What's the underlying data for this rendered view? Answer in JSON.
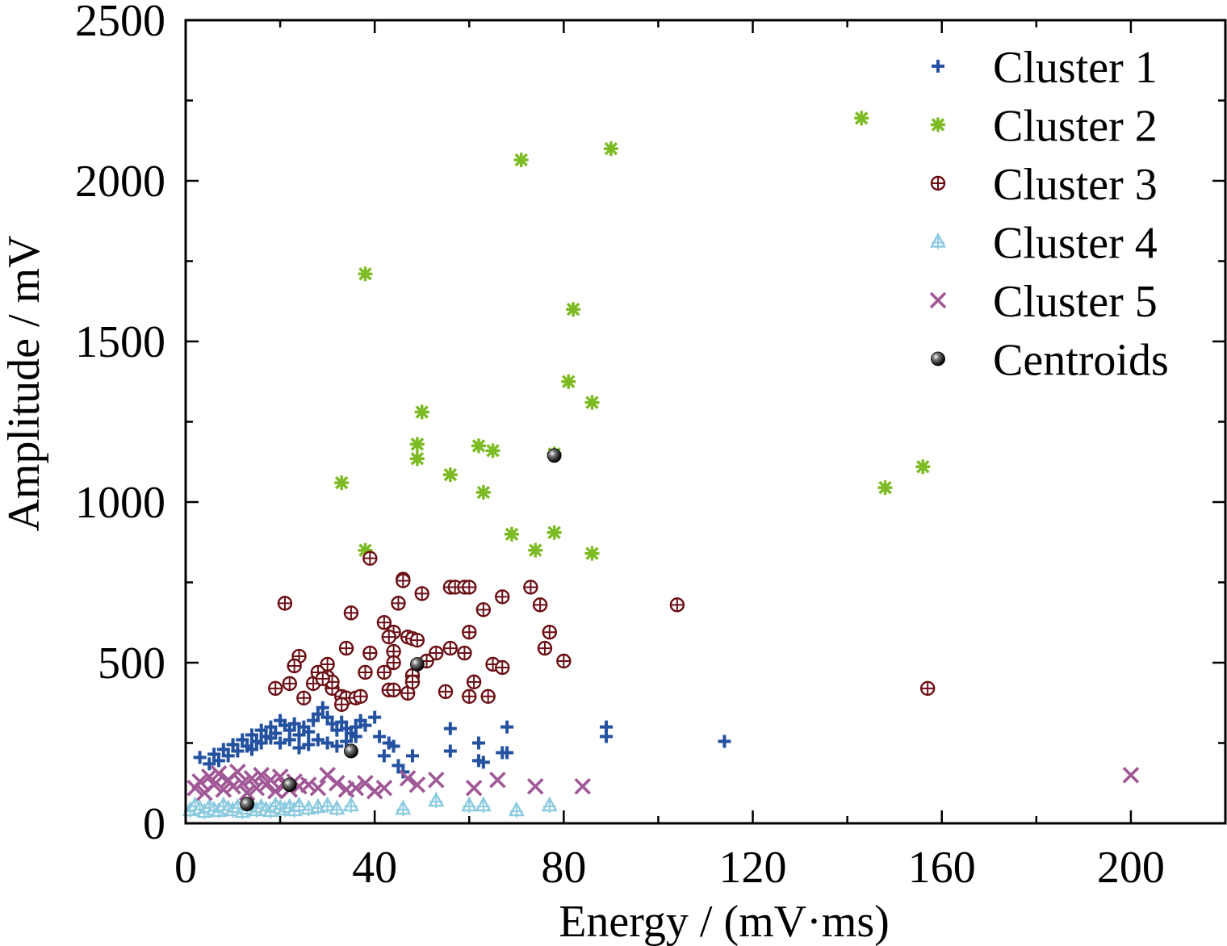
{
  "chart_data": {
    "type": "scatter",
    "title": "",
    "xlabel": "Energy / (mV·ms)",
    "ylabel": "Amplitude / mV",
    "xlim": [
      0,
      220
    ],
    "ylim": [
      0,
      2500
    ],
    "x_ticks": [
      "0",
      "40",
      "80",
      "120",
      "160",
      "200"
    ],
    "y_ticks": [
      "0",
      "500",
      "1000",
      "1500",
      "2000",
      "2500"
    ],
    "grid": false,
    "legend_position": "top-right",
    "series": [
      {
        "name": "Cluster 1",
        "marker": "plus",
        "color": "#2452a1",
        "points": [
          [
            3,
            205
          ],
          [
            5,
            185
          ],
          [
            6,
            215
          ],
          [
            7,
            195
          ],
          [
            8,
            230
          ],
          [
            9,
            210
          ],
          [
            10,
            245
          ],
          [
            11,
            225
          ],
          [
            12,
            260
          ],
          [
            13,
            240
          ],
          [
            14,
            275
          ],
          [
            15,
            255
          ],
          [
            16,
            290
          ],
          [
            17,
            270
          ],
          [
            18,
            300
          ],
          [
            19,
            280
          ],
          [
            20,
            320
          ],
          [
            21,
            305
          ],
          [
            22,
            290
          ],
          [
            23,
            310
          ],
          [
            24,
            275
          ],
          [
            25,
            300
          ],
          [
            26,
            285
          ],
          [
            27,
            320
          ],
          [
            28,
            340
          ],
          [
            29,
            360
          ],
          [
            30,
            330
          ],
          [
            31,
            310
          ],
          [
            32,
            290
          ],
          [
            33,
            315
          ],
          [
            34,
            295
          ],
          [
            35,
            280
          ],
          [
            36,
            300
          ],
          [
            37,
            320
          ],
          [
            38,
            305
          ],
          [
            40,
            330
          ],
          [
            14,
            230
          ],
          [
            16,
            250
          ],
          [
            18,
            265
          ],
          [
            20,
            250
          ],
          [
            22,
            260
          ],
          [
            24,
            235
          ],
          [
            26,
            245
          ],
          [
            28,
            260
          ],
          [
            30,
            250
          ],
          [
            32,
            240
          ],
          [
            34,
            255
          ],
          [
            36,
            270
          ],
          [
            41,
            270
          ],
          [
            42,
            210
          ],
          [
            43,
            250
          ],
          [
            44,
            240
          ],
          [
            45,
            180
          ],
          [
            46,
            160
          ],
          [
            48,
            210
          ],
          [
            56,
            295
          ],
          [
            56,
            225
          ],
          [
            62,
            250
          ],
          [
            62,
            195
          ],
          [
            63,
            190
          ],
          [
            67,
            220
          ],
          [
            68,
            300
          ],
          [
            68,
            220
          ],
          [
            89,
            300
          ],
          [
            89,
            270
          ],
          [
            114,
            255
          ]
        ]
      },
      {
        "name": "Cluster 2",
        "marker": "asterisk",
        "color": "#7dbb24",
        "points": [
          [
            143,
            2195
          ],
          [
            90,
            2100
          ],
          [
            71,
            2065
          ],
          [
            38,
            1710
          ],
          [
            82,
            1600
          ],
          [
            81,
            1375
          ],
          [
            86,
            1310
          ],
          [
            50,
            1280
          ],
          [
            49,
            1180
          ],
          [
            49,
            1135
          ],
          [
            62,
            1175
          ],
          [
            65,
            1160
          ],
          [
            56,
            1085
          ],
          [
            33,
            1060
          ],
          [
            63,
            1030
          ],
          [
            78,
            1150
          ],
          [
            156,
            1110
          ],
          [
            148,
            1045
          ],
          [
            69,
            900
          ],
          [
            78,
            905
          ],
          [
            74,
            850
          ],
          [
            86,
            840
          ],
          [
            38,
            850
          ]
        ]
      },
      {
        "name": "Cluster 3",
        "marker": "circle-plus",
        "color": "#6b0f14",
        "points": [
          [
            21,
            685
          ],
          [
            39,
            825
          ],
          [
            46,
            760
          ],
          [
            46,
            755
          ],
          [
            50,
            715
          ],
          [
            56,
            735
          ],
          [
            57,
            735
          ],
          [
            59,
            735
          ],
          [
            60,
            735
          ],
          [
            67,
            705
          ],
          [
            73,
            735
          ],
          [
            75,
            680
          ],
          [
            104,
            680
          ],
          [
            157,
            420
          ],
          [
            45,
            685
          ],
          [
            35,
            655
          ],
          [
            42,
            625
          ],
          [
            44,
            595
          ],
          [
            43,
            580
          ],
          [
            44,
            535
          ],
          [
            47,
            580
          ],
          [
            48,
            575
          ],
          [
            49,
            570
          ],
          [
            53,
            530
          ],
          [
            56,
            545
          ],
          [
            59,
            530
          ],
          [
            60,
            595
          ],
          [
            63,
            665
          ],
          [
            65,
            495
          ],
          [
            67,
            485
          ],
          [
            76,
            545
          ],
          [
            77,
            595
          ],
          [
            80,
            505
          ],
          [
            24,
            520
          ],
          [
            23,
            490
          ],
          [
            30,
            495
          ],
          [
            34,
            545
          ],
          [
            39,
            530
          ],
          [
            42,
            470
          ],
          [
            44,
            500
          ],
          [
            48,
            460
          ],
          [
            51,
            505
          ],
          [
            19,
            420
          ],
          [
            22,
            435
          ],
          [
            27,
            435
          ],
          [
            25,
            390
          ],
          [
            30,
            455
          ],
          [
            31,
            420
          ],
          [
            33,
            395
          ],
          [
            34,
            390
          ],
          [
            36,
            390
          ],
          [
            37,
            395
          ],
          [
            38,
            470
          ],
          [
            43,
            415
          ],
          [
            44,
            415
          ],
          [
            47,
            405
          ],
          [
            48,
            440
          ],
          [
            55,
            410
          ],
          [
            60,
            395
          ],
          [
            61,
            440
          ],
          [
            64,
            395
          ],
          [
            28,
            470
          ],
          [
            31,
            440
          ],
          [
            33,
            370
          ],
          [
            29,
            450
          ]
        ]
      },
      {
        "name": "Cluster 4",
        "marker": "triangle",
        "color": "#8ccae0",
        "points": [
          [
            1,
            40
          ],
          [
            2,
            55
          ],
          [
            3,
            45
          ],
          [
            4,
            35
          ],
          [
            5,
            50
          ],
          [
            6,
            42
          ],
          [
            7,
            38
          ],
          [
            8,
            55
          ],
          [
            9,
            45
          ],
          [
            10,
            40
          ],
          [
            11,
            50
          ],
          [
            12,
            35
          ],
          [
            13,
            45
          ],
          [
            14,
            55
          ],
          [
            15,
            40
          ],
          [
            16,
            50
          ],
          [
            17,
            42
          ],
          [
            18,
            38
          ],
          [
            19,
            55
          ],
          [
            20,
            48
          ],
          [
            21,
            42
          ],
          [
            22,
            50
          ],
          [
            23,
            40
          ],
          [
            24,
            55
          ],
          [
            26,
            45
          ],
          [
            28,
            50
          ],
          [
            30,
            55
          ],
          [
            32,
            45
          ],
          [
            35,
            55
          ],
          [
            46,
            45
          ],
          [
            53,
            70
          ],
          [
            60,
            55
          ],
          [
            63,
            55
          ],
          [
            70,
            40
          ],
          [
            77,
            55
          ]
        ]
      },
      {
        "name": "Cluster 5",
        "marker": "cross",
        "color": "#a05896",
        "points": [
          [
            2,
            110
          ],
          [
            3,
            130
          ],
          [
            4,
            95
          ],
          [
            5,
            145
          ],
          [
            6,
            120
          ],
          [
            7,
            155
          ],
          [
            8,
            105
          ],
          [
            9,
            135
          ],
          [
            10,
            115
          ],
          [
            11,
            160
          ],
          [
            12,
            125
          ],
          [
            13,
            95
          ],
          [
            14,
            140
          ],
          [
            15,
            110
          ],
          [
            16,
            150
          ],
          [
            17,
            120
          ],
          [
            18,
            135
          ],
          [
            19,
            100
          ],
          [
            20,
            145
          ],
          [
            21,
            120
          ],
          [
            22,
            105
          ],
          [
            23,
            130
          ],
          [
            24,
            115
          ],
          [
            26,
            120
          ],
          [
            28,
            110
          ],
          [
            30,
            150
          ],
          [
            32,
            125
          ],
          [
            34,
            105
          ],
          [
            36,
            110
          ],
          [
            38,
            125
          ],
          [
            40,
            100
          ],
          [
            42,
            110
          ],
          [
            47,
            140
          ],
          [
            49,
            120
          ],
          [
            53,
            135
          ],
          [
            61,
            110
          ],
          [
            66,
            135
          ],
          [
            74,
            115
          ],
          [
            84,
            115
          ],
          [
            200,
            150
          ]
        ]
      },
      {
        "name": "Centroids",
        "marker": "ball",
        "color": "#000000",
        "points": [
          [
            78,
            1145
          ],
          [
            49,
            495
          ],
          [
            35,
            225
          ],
          [
            22,
            120
          ],
          [
            13,
            60
          ]
        ]
      }
    ]
  }
}
